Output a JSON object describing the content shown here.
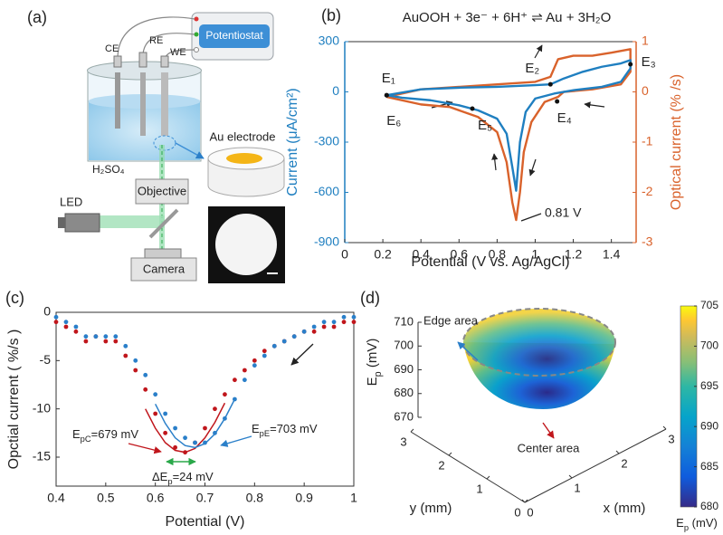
{
  "diagram": {
    "label": "(a)",
    "texts": {
      "potentiostat": "Potentiostat",
      "ce": "CE",
      "re": "RE",
      "we": "WE",
      "electrolyte": "H₂SO₄",
      "au_electrode": "Au electrode",
      "objective": "Objective",
      "led": "LED",
      "camera": "Camera"
    }
  },
  "chart_data": [
    {
      "type": "line",
      "label": "(b)",
      "title": "AuOOH + 3e⁻ + 6H⁺ ⇌ Au + 3H₂O",
      "xlabel": "Potential (V vs. Ag/AgCl)",
      "ylabel": "Current (μA/cm²)",
      "y2label": "Optical current (% /s)",
      "xlim": [
        0,
        1.53
      ],
      "xticks": [
        0,
        0.2,
        0.4,
        0.6,
        0.8,
        1,
        1.2,
        1.4
      ],
      "ylim": [
        -900,
        300
      ],
      "yticks": [
        -900,
        -600,
        -300,
        0,
        300
      ],
      "y2lim": [
        -3,
        1
      ],
      "y2ticks": [
        -3,
        -2,
        -1,
        0,
        1
      ],
      "series": [
        {
          "color": "#d9622b",
          "axis": "y2",
          "x": [
            0.22,
            0.4,
            0.6,
            0.8,
            1.0,
            1.08,
            1.12,
            1.2,
            1.3,
            1.4,
            1.5,
            1.5,
            1.45,
            1.3,
            1.15,
            1.12,
            1.05,
            0.98,
            0.94,
            0.92,
            0.9,
            0.88,
            0.85,
            0.8,
            0.7,
            0.55,
            0.4,
            0.22
          ],
          "values": [
            -0.1,
            0.05,
            0.1,
            0.15,
            0.2,
            0.3,
            0.65,
            0.72,
            0.72,
            0.78,
            0.85,
            0.4,
            0.15,
            0.05,
            0.0,
            -0.1,
            -0.2,
            -0.6,
            -1.2,
            -2.0,
            -2.55,
            -2.2,
            -1.4,
            -0.8,
            -0.5,
            -0.3,
            -0.25,
            -0.1
          ]
        },
        {
          "color": "#1f7fc0",
          "x": [
            0.22,
            0.4,
            0.6,
            0.8,
            1.0,
            1.08,
            1.15,
            1.25,
            1.35,
            1.45,
            1.5,
            1.5,
            1.45,
            1.35,
            1.2,
            1.1,
            1.0,
            0.95,
            0.92,
            0.9,
            0.88,
            0.85,
            0.8,
            0.7,
            0.6,
            0.45,
            0.3,
            0.22
          ],
          "values": [
            -20,
            15,
            25,
            30,
            40,
            45,
            80,
            120,
            150,
            170,
            190,
            140,
            60,
            30,
            10,
            -10,
            -40,
            -120,
            -300,
            -590,
            -450,
            -250,
            -160,
            -110,
            -80,
            -50,
            -35,
            -20
          ]
        }
      ],
      "annotations": [
        {
          "text": "E₁",
          "x": 0.22,
          "y": -20
        },
        {
          "text": "E₂",
          "x": 1.08,
          "y": 45
        },
        {
          "text": "E₃",
          "x": 1.5,
          "y": 165
        },
        {
          "text": "E₄",
          "x": 1.115,
          "y": -57
        },
        {
          "text": "E₅",
          "x": 0.67,
          "y": -100
        },
        {
          "text": "E₆",
          "x": 0.22,
          "y": -20
        }
      ],
      "note": "0.81 V"
    },
    {
      "type": "scatter",
      "label": "(c)",
      "xlabel": "Potential (V)",
      "ylabel": "Opctial current ( %/s )",
      "xlim": [
        0.4,
        1
      ],
      "xticks": [
        0.4,
        0.5,
        0.6,
        0.7,
        0.8,
        0.9,
        1
      ],
      "ylim": [
        -18,
        0
      ],
      "yticks": [
        -15,
        -10,
        -5,
        0
      ],
      "x": [
        0.4,
        0.42,
        0.44,
        0.46,
        0.48,
        0.5,
        0.52,
        0.54,
        0.56,
        0.58,
        0.6,
        0.62,
        0.64,
        0.66,
        0.68,
        0.7,
        0.72,
        0.74,
        0.76,
        0.78,
        0.8,
        0.82,
        0.84,
        0.86,
        0.88,
        0.9,
        0.92,
        0.94,
        0.96,
        0.98,
        1
      ],
      "series": [
        {
          "color": "#c0161c",
          "values": [
            -1,
            -1.5,
            -2,
            -3,
            -2.5,
            -3,
            -3,
            -4.5,
            -6,
            -8,
            -10.5,
            -12.5,
            -14,
            -14.5,
            -13.5,
            -12,
            -10,
            -8.5,
            -7,
            -6,
            -5,
            -4,
            -3.5,
            -3,
            -2.5,
            -2,
            -2,
            -1.5,
            -1.5,
            -1,
            -1
          ]
        },
        {
          "color": "#2a7fc9",
          "values": [
            -0.5,
            -1,
            -1.5,
            -2.5,
            -2.5,
            -2.5,
            -2.5,
            -3.5,
            -5,
            -6.5,
            -8.5,
            -10.5,
            -12,
            -13,
            -13.5,
            -13.5,
            -12.5,
            -11,
            -9,
            -7,
            -5.5,
            -4.5,
            -3.5,
            -3,
            -2.5,
            -2,
            -1.5,
            -1,
            -1,
            -0.5,
            -0.5
          ]
        },
        {
          "type": "line",
          "color": "#c0161c",
          "x": [
            0.58,
            0.6,
            0.62,
            0.64,
            0.66,
            0.68,
            0.7,
            0.72,
            0.74
          ],
          "values": [
            -10,
            -12,
            -13.5,
            -14.3,
            -14.5,
            -14.1,
            -13,
            -11.4,
            -9.4
          ]
        },
        {
          "type": "line",
          "color": "#2a7fc9",
          "x": [
            0.6,
            0.62,
            0.64,
            0.66,
            0.68,
            0.7,
            0.72,
            0.74,
            0.76
          ],
          "values": [
            -9.5,
            -11.5,
            -13,
            -13.8,
            -14,
            -13.6,
            -12.6,
            -11,
            -9
          ]
        }
      ],
      "annotations": [
        {
          "base": "E",
          "sub": "pC",
          "tail": "=679 mV"
        },
        {
          "base": "E",
          "sub": "pE",
          "tail": "=703 mV"
        },
        {
          "base": "ΔE",
          "sub": "p",
          "tail": "=24 mV"
        }
      ]
    },
    {
      "type": "surface3d",
      "label": "(d)",
      "zlabel": {
        "base": "E",
        "sub": "p",
        "tail": " (mV)"
      },
      "xlabel": "x (mm)",
      "ylabel": "y (mm)",
      "xlim": [
        0,
        3
      ],
      "xticks": [
        0,
        1,
        2,
        3
      ],
      "ylim": [
        0,
        3
      ],
      "yticks": [
        0,
        1,
        2,
        3
      ],
      "zlim": [
        670,
        710
      ],
      "zticks": [
        670,
        680,
        690,
        700,
        710
      ],
      "clim": [
        680,
        705
      ],
      "cticks": [
        680,
        685,
        690,
        695,
        700,
        705
      ],
      "colorbar_label": {
        "base": "E",
        "sub": "p",
        "tail": " (mV)"
      },
      "annotations": [
        "Edge area",
        "Center area"
      ]
    }
  ]
}
